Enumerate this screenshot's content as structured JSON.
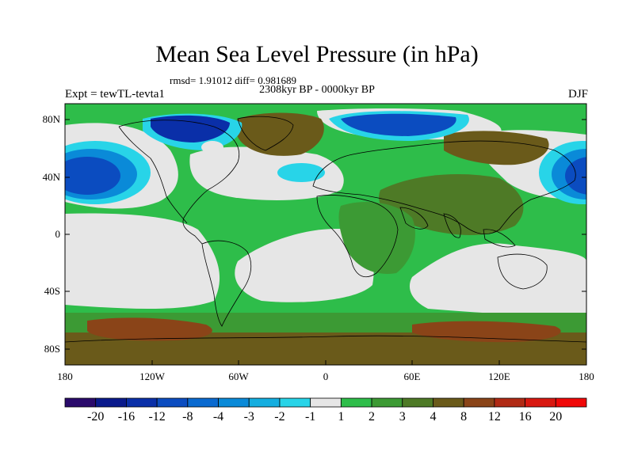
{
  "title": "Mean Sea Level Pressure (in hPa)",
  "stats_line": "rmsd= 1.91012 diff= 0.981689",
  "period_line": "2308kyr BP - 0000kyr BP",
  "experiment_label": "Expt = tewTL-tevta1",
  "season_label": "DJF",
  "y_ticks": [
    "80N",
    "40N",
    "0",
    "40S",
    "80S"
  ],
  "x_ticks": [
    "180",
    "120W",
    "60W",
    "0",
    "60E",
    "120E",
    "180"
  ],
  "colorbar": {
    "labels": [
      "-20",
      "-16",
      "-12",
      "-8",
      "-4",
      "-3",
      "-2",
      "-1",
      "1",
      "2",
      "3",
      "4",
      "8",
      "12",
      "16",
      "20"
    ],
    "colors": [
      "#2a0a6b",
      "#0a1a8c",
      "#0a2fa8",
      "#0b4cc0",
      "#0a6ad0",
      "#0a8ad8",
      "#14aee0",
      "#28d4e8",
      "#e6e6e6",
      "#2ebd4a",
      "#3c9a34",
      "#4e7a26",
      "#6a5a1a",
      "#8a4418",
      "#b02a14",
      "#d81810",
      "#f00808"
    ]
  },
  "colors": {
    "land_outline": "#000000",
    "ocean_neutral": "#e6e6e6"
  }
}
